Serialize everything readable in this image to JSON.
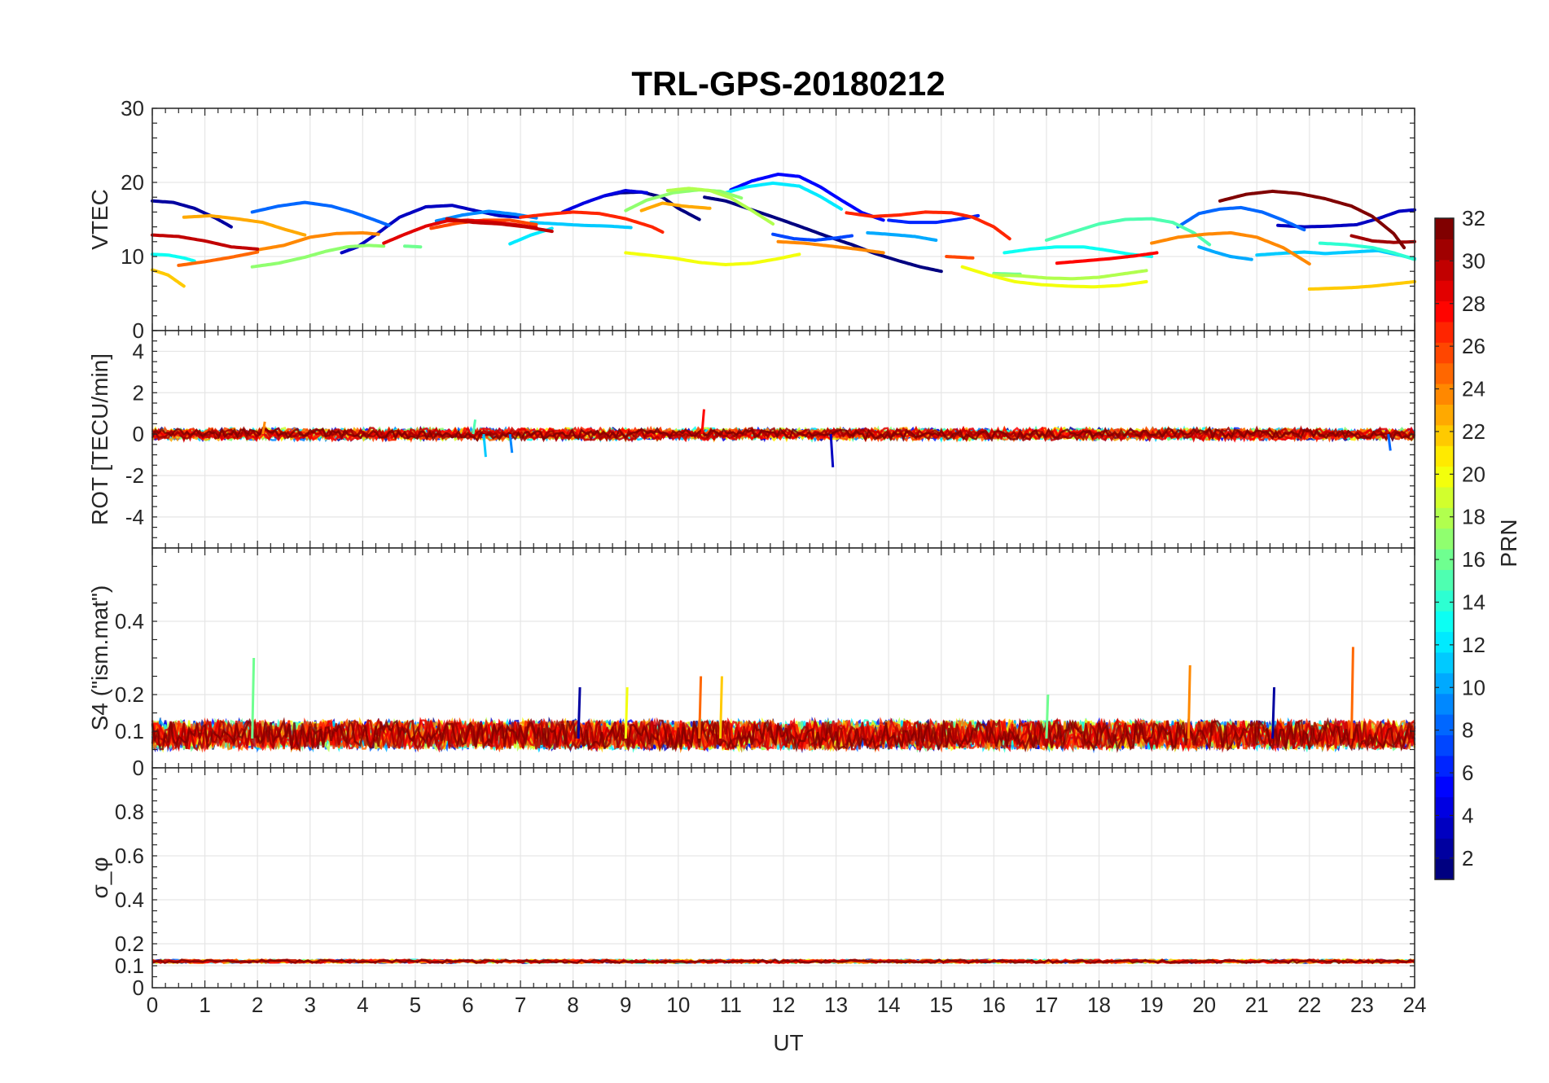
{
  "chart_data": {
    "type": "line",
    "title": "TRL-GPS-20180212",
    "xlabel": "UT",
    "xlim": [
      0,
      24
    ],
    "x_ticks": [
      "0",
      "1",
      "2",
      "3",
      "4",
      "5",
      "6",
      "7",
      "8",
      "9",
      "10",
      "11",
      "12",
      "13",
      "14",
      "15",
      "16",
      "17",
      "18",
      "19",
      "20",
      "21",
      "22",
      "23",
      "24"
    ],
    "grid": true,
    "colormap": "jet",
    "colorbar": {
      "label": "PRN",
      "range": [
        1,
        32
      ],
      "ticks": [
        "2",
        "4",
        "6",
        "8",
        "10",
        "12",
        "14",
        "16",
        "18",
        "20",
        "22",
        "24",
        "26",
        "28",
        "30",
        "32"
      ]
    },
    "panels": [
      {
        "ylabel": "VTEC",
        "ylim": [
          0,
          30
        ],
        "y_ticks": [
          "0",
          "10",
          "20",
          "30"
        ],
        "arcs": [
          {
            "prn": 1,
            "x": [
              10.5,
              10.9,
              11.4,
              11.9,
              12.3,
              12.8,
              13.3,
              13.7,
              14.2,
              14.6,
              15.0
            ],
            "y": [
              18.0,
              17.5,
              16.3,
              15.1,
              14.1,
              12.8,
              11.6,
              10.5,
              9.4,
              8.6,
              8.0
            ]
          },
          {
            "prn": 1,
            "x": [
              8.6,
              8.9,
              9.3,
              9.7,
              10.0,
              10.4
            ],
            "y": [
              18.2,
              18.6,
              18.7,
              18.0,
              16.5,
              15.0
            ]
          },
          {
            "prn": 2,
            "x": [
              0.0,
              0.4,
              0.8,
              1.2,
              1.5
            ],
            "y": [
              17.5,
              17.3,
              16.5,
              15.2,
              14.0
            ]
          },
          {
            "prn": 3,
            "x": [
              3.6,
              3.9,
              4.3,
              4.7,
              5.2,
              5.7,
              6.2,
              6.6,
              7.0
            ],
            "y": [
              10.5,
              11.3,
              13.2,
              15.3,
              16.7,
              16.9,
              16.1,
              15.5,
              15.3
            ]
          },
          {
            "prn": 3,
            "x": [
              21.4,
              21.9,
              22.4,
              22.9,
              23.3,
              23.7,
              24.0
            ],
            "y": [
              14.2,
              14.0,
              14.1,
              14.3,
              15.1,
              16.1,
              16.3
            ]
          },
          {
            "prn": 4,
            "x": [
              7.8,
              8.2,
              8.6,
              9.0,
              9.4
            ],
            "y": [
              16.0,
              17.2,
              18.2,
              18.9,
              18.6
            ]
          },
          {
            "prn": 5,
            "x": [
              11.0,
              11.4,
              11.9,
              12.3,
              12.7,
              13.1,
              13.5,
              13.9
            ],
            "y": [
              19.0,
              20.2,
              21.1,
              20.8,
              19.4,
              17.6,
              15.9,
              14.9
            ]
          },
          {
            "prn": 6,
            "x": [
              14.0,
              14.4,
              14.9,
              15.3,
              15.7
            ],
            "y": [
              14.9,
              14.6,
              14.6,
              15.0,
              15.5
            ]
          },
          {
            "prn": 7,
            "x": [
              11.8,
              12.2,
              12.6,
              13.0,
              13.3
            ],
            "y": [
              13.0,
              12.4,
              12.2,
              12.5,
              12.8
            ]
          },
          {
            "prn": 8,
            "x": [
              1.9,
              2.4,
              2.9,
              3.4,
              3.8,
              4.2,
              4.5
            ],
            "y": [
              16.0,
              16.8,
              17.3,
              16.8,
              16.0,
              15.0,
              14.2
            ]
          },
          {
            "prn": 8,
            "x": [
              19.5,
              19.9,
              20.3,
              20.7,
              21.1,
              21.5,
              21.9
            ],
            "y": [
              14.0,
              15.8,
              16.4,
              16.6,
              16.0,
              14.9,
              13.6
            ]
          },
          {
            "prn": 9,
            "x": [
              5.4,
              5.9,
              6.4,
              6.9,
              7.3
            ],
            "y": [
              14.8,
              15.6,
              16.1,
              15.7,
              15.2
            ]
          },
          {
            "prn": 10,
            "x": [
              19.9,
              20.2,
              20.5,
              20.9
            ],
            "y": [
              11.3,
              10.6,
              10.0,
              9.6
            ]
          },
          {
            "prn": 10,
            "x": [
              13.6,
              14.0,
              14.5,
              14.9
            ],
            "y": [
              13.2,
              13.0,
              12.7,
              12.2
            ]
          },
          {
            "prn": 11,
            "x": [
              7.2,
              7.7,
              8.2,
              8.7,
              9.1
            ],
            "y": [
              14.6,
              14.4,
              14.2,
              14.1,
              13.9
            ]
          },
          {
            "prn": 11,
            "x": [
              21.0,
              21.4,
              21.9,
              22.3,
              22.8,
              23.3,
              23.7,
              24.0
            ],
            "y": [
              10.2,
              10.4,
              10.6,
              10.4,
              10.6,
              10.8,
              10.2,
              9.7
            ]
          },
          {
            "prn": 12,
            "x": [
              10.9,
              11.3,
              11.8,
              12.3,
              12.7,
              13.1
            ],
            "y": [
              18.6,
              19.4,
              19.9,
              19.5,
              18.1,
              16.4
            ]
          },
          {
            "prn": 12,
            "x": [
              6.8,
              7.2,
              7.6
            ],
            "y": [
              11.7,
              12.9,
              13.8
            ]
          },
          {
            "prn": 13,
            "x": [
              16.2,
              16.7,
              17.2,
              17.7,
              18.1,
              18.6,
              19.0
            ],
            "y": [
              10.5,
              11.0,
              11.3,
              11.3,
              10.9,
              10.3,
              10.0
            ]
          },
          {
            "prn": 13,
            "x": [
              0.0,
              0.3,
              0.6,
              0.8
            ],
            "y": [
              10.3,
              10.2,
              9.8,
              9.4
            ]
          },
          {
            "prn": 14,
            "x": [
              22.2,
              22.7,
              23.2,
              23.6,
              24.0
            ],
            "y": [
              11.8,
              11.6,
              11.2,
              10.5,
              9.6
            ]
          },
          {
            "prn": 15,
            "x": [
              17.0,
              17.5,
              18.0,
              18.5,
              19.0,
              19.4,
              19.8,
              20.1
            ],
            "y": [
              12.2,
              13.3,
              14.4,
              15.0,
              15.1,
              14.6,
              13.2,
              11.6
            ]
          },
          {
            "prn": 16,
            "x": [
              4.8,
              5.1
            ],
            "y": [
              11.4,
              11.3
            ]
          },
          {
            "prn": 16,
            "x": [
              16.0,
              16.5
            ],
            "y": [
              7.7,
              7.6
            ]
          },
          {
            "prn": 17,
            "x": [
              1.9,
              2.4,
              2.9,
              3.3,
              3.7,
              4.1,
              4.4
            ],
            "y": [
              8.6,
              9.1,
              9.9,
              10.7,
              11.3,
              11.5,
              11.4
            ]
          },
          {
            "prn": 17,
            "x": [
              9.0,
              9.4,
              9.9,
              10.4,
              10.8,
              11.2
            ],
            "y": [
              16.2,
              17.6,
              18.6,
              19.0,
              18.8,
              17.9
            ]
          },
          {
            "prn": 18,
            "x": [
              9.8,
              10.2,
              10.6,
              11.0,
              11.4,
              11.8
            ],
            "y": [
              18.9,
              19.2,
              18.9,
              17.9,
              16.2,
              14.4
            ]
          },
          {
            "prn": 18,
            "x": [
              16.0,
              16.5,
              17.0,
              17.5,
              18.0,
              18.5,
              18.9
            ],
            "y": [
              7.5,
              7.4,
              7.1,
              7.0,
              7.2,
              7.7,
              8.1
            ]
          },
          {
            "prn": 20,
            "x": [
              9.0,
              9.4,
              9.9,
              10.4,
              10.9,
              11.4,
              11.9,
              12.3
            ],
            "y": [
              10.5,
              10.2,
              9.8,
              9.2,
              8.9,
              9.1,
              9.7,
              10.3
            ]
          },
          {
            "prn": 20,
            "x": [
              15.4,
              15.9,
              16.4,
              16.9,
              17.4,
              17.9,
              18.4,
              18.9
            ],
            "y": [
              8.6,
              7.5,
              6.6,
              6.2,
              6.0,
              5.9,
              6.1,
              6.6
            ]
          },
          {
            "prn": 22,
            "x": [
              0.0,
              0.3,
              0.6
            ],
            "y": [
              8.2,
              7.5,
              6.0
            ]
          },
          {
            "prn": 22,
            "x": [
              22.0,
              22.4,
              22.8,
              23.2,
              23.6,
              24.0
            ],
            "y": [
              5.6,
              5.7,
              5.8,
              6.0,
              6.3,
              6.6
            ]
          },
          {
            "prn": 23,
            "x": [
              0.6,
              1.1,
              1.6,
              2.1,
              2.5,
              2.9
            ],
            "y": [
              15.3,
              15.5,
              15.1,
              14.6,
              13.7,
              12.9
            ]
          },
          {
            "prn": 23,
            "x": [
              9.3,
              9.7,
              10.1,
              10.6
            ],
            "y": [
              16.2,
              17.2,
              16.8,
              16.5
            ]
          },
          {
            "prn": 24,
            "x": [
              2.0,
              2.5,
              3.0,
              3.5,
              4.0,
              4.3
            ],
            "y": [
              10.9,
              11.5,
              12.6,
              13.1,
              13.2,
              13.0
            ]
          },
          {
            "prn": 24,
            "x": [
              11.9,
              12.4,
              12.9,
              13.4,
              13.9
            ],
            "y": [
              12.0,
              11.8,
              11.4,
              11.0,
              10.5
            ]
          },
          {
            "prn": 24,
            "x": [
              19.0,
              19.5,
              20.0,
              20.5,
              21.0,
              21.5,
              22.0
            ],
            "y": [
              11.8,
              12.6,
              13.0,
              13.2,
              12.6,
              11.2,
              9.0
            ]
          },
          {
            "prn": 25,
            "x": [
              0.5,
              1.0,
              1.5,
              2.0
            ],
            "y": [
              8.8,
              9.3,
              9.9,
              10.6
            ]
          },
          {
            "prn": 26,
            "x": [
              5.3,
              5.8,
              6.3,
              6.8,
              7.3
            ],
            "y": [
              13.8,
              14.5,
              14.9,
              14.9,
              14.3
            ]
          },
          {
            "prn": 26,
            "x": [
              15.1,
              15.6
            ],
            "y": [
              10.0,
              9.8
            ]
          },
          {
            "prn": 27,
            "x": [
              7.0,
              7.5,
              8.0,
              8.5,
              9.0,
              9.5,
              9.7
            ],
            "y": [
              15.3,
              15.7,
              16.0,
              15.8,
              15.1,
              14.0,
              13.3
            ]
          },
          {
            "prn": 27,
            "x": [
              13.2,
              13.7,
              14.2,
              14.7,
              15.2,
              15.6,
              16.0,
              16.3
            ],
            "y": [
              15.9,
              15.4,
              15.6,
              16.0,
              15.9,
              15.3,
              14.0,
              12.4
            ]
          },
          {
            "prn": 28,
            "x": [
              17.2,
              17.7,
              18.2,
              18.7,
              19.1
            ],
            "y": [
              9.1,
              9.4,
              9.7,
              10.1,
              10.5
            ]
          },
          {
            "prn": 29,
            "x": [
              4.4,
              4.8,
              5.2,
              5.6,
              6.0,
              6.4,
              6.9,
              7.3
            ],
            "y": [
              11.8,
              13.0,
              14.1,
              14.8,
              14.9,
              14.7,
              14.3,
              13.9
            ]
          },
          {
            "prn": 30,
            "x": [
              0.0,
              0.5,
              1.0,
              1.5,
              2.0
            ],
            "y": [
              12.9,
              12.7,
              12.1,
              11.3,
              11.0
            ]
          },
          {
            "prn": 30,
            "x": [
              5.6,
              6.1,
              6.6,
              7.1,
              7.6
            ],
            "y": [
              15.1,
              14.6,
              14.4,
              14.0,
              13.4
            ]
          },
          {
            "prn": 31,
            "x": [
              22.8,
              23.2,
              23.6,
              24.0
            ],
            "y": [
              12.8,
              12.1,
              11.9,
              12.0
            ]
          },
          {
            "prn": 32,
            "x": [
              20.3,
              20.8,
              21.3,
              21.8,
              22.3,
              22.8,
              23.2,
              23.6,
              23.8
            ],
            "y": [
              17.5,
              18.4,
              18.8,
              18.5,
              17.8,
              16.8,
              15.4,
              13.1,
              11.2
            ]
          }
        ]
      },
      {
        "ylabel": "ROT [TECU/min]",
        "ylim": [
          -5.5,
          5
        ],
        "y_ticks": [
          "-4",
          "-2",
          "0",
          "2",
          "4"
        ],
        "typical_range": [
          -0.5,
          0.5
        ],
        "spikes": [
          {
            "x": 10.45,
            "y": 1.2,
            "prn": 28
          },
          {
            "x": 12.9,
            "y": -1.6,
            "prn": 3
          },
          {
            "x": 6.3,
            "y": -1.1,
            "prn": 11
          },
          {
            "x": 6.8,
            "y": -0.9,
            "prn": 9
          },
          {
            "x": 2.1,
            "y": 0.6,
            "prn": 24
          },
          {
            "x": 6.1,
            "y": 0.7,
            "prn": 15
          },
          {
            "x": 23.5,
            "y": -0.8,
            "prn": 8
          }
        ]
      },
      {
        "ylabel": "S4 (\"ism.mat\")",
        "ylim": [
          0,
          0.6
        ],
        "y_ticks": [
          "0",
          "0.1",
          "0.2",
          "0.4"
        ],
        "baseline_range": [
          0.05,
          0.13
        ],
        "spikes": [
          {
            "x": 1.9,
            "y": 0.3,
            "prn": 16
          },
          {
            "x": 22.8,
            "y": 0.33,
            "prn": 25
          },
          {
            "x": 19.7,
            "y": 0.28,
            "prn": 24
          },
          {
            "x": 10.4,
            "y": 0.25,
            "prn": 25
          },
          {
            "x": 10.8,
            "y": 0.25,
            "prn": 22
          },
          {
            "x": 8.1,
            "y": 0.22,
            "prn": 2
          },
          {
            "x": 21.3,
            "y": 0.22,
            "prn": 2
          },
          {
            "x": 17.0,
            "y": 0.2,
            "prn": 16
          },
          {
            "x": 9.0,
            "y": 0.22,
            "prn": 20
          }
        ]
      },
      {
        "ylabel": "σ_φ",
        "ylim": [
          0,
          1
        ],
        "y_ticks": [
          "0",
          "0.1",
          "0.2",
          "0.4",
          "0.6",
          "0.8"
        ],
        "baseline": 0.12
      }
    ]
  }
}
